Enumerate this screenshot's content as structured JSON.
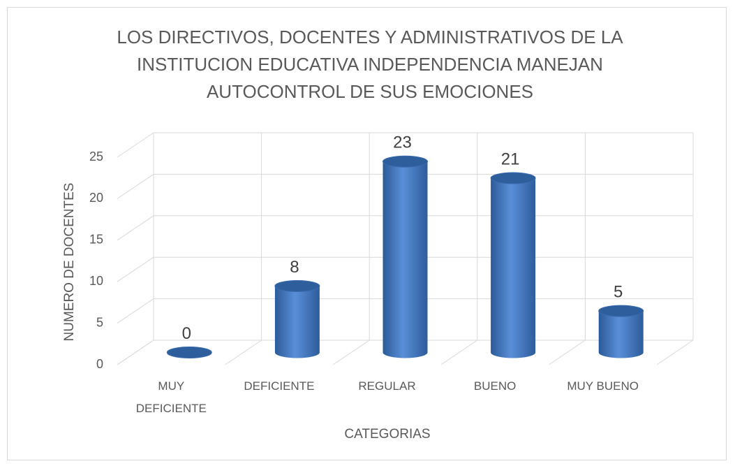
{
  "chart_data": {
    "type": "bar",
    "title": "LOS DIRECTIVOS, DOCENTES Y ADMINISTRATIVOS DE LA INSTITUCION EDUCATIVA INDEPENDENCIA MANEJAN AUTOCONTROL DE SUS EMOCIONES",
    "x_label": "CATEGORIAS",
    "y_label": "NUMERO DE DOCENTES",
    "categories": [
      "MUY DEFICIENTE",
      "DEFICIENTE",
      "REGULAR",
      "BUENO",
      "MUY BUENO"
    ],
    "values": [
      0,
      8,
      23,
      21,
      5
    ],
    "color": "#4a7fc8",
    "ylim": [
      0,
      25
    ],
    "yticks": [
      0,
      5,
      10,
      15,
      20,
      25
    ],
    "grid": true
  }
}
